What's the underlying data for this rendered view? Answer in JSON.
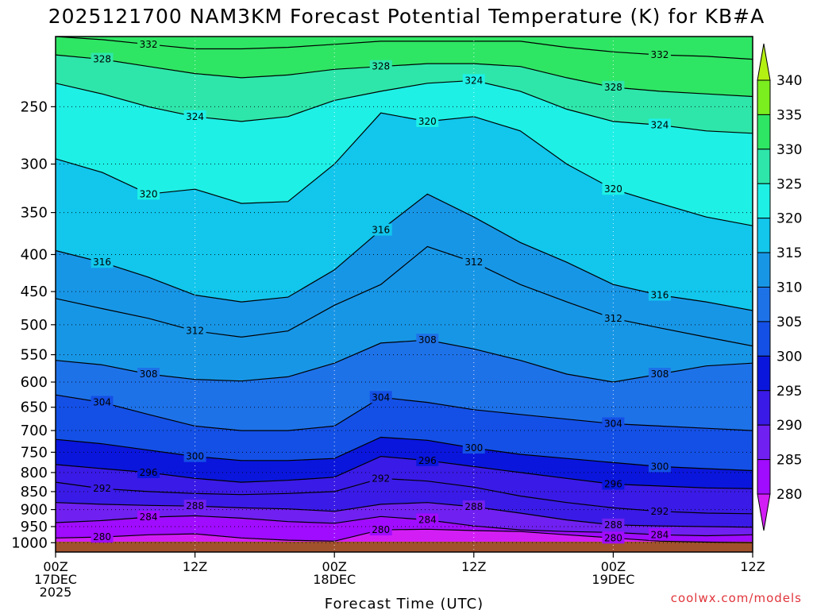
{
  "chart_data": {
    "type": "heatmap",
    "title": "2025121700 NAM3KM Forecast Potential Temperature (K) for KB#A",
    "xlabel": "Forecast Time (UTC)",
    "ylabel": "",
    "x_ticks": [
      {
        "hour": 0,
        "lines": [
          "00Z",
          "17DEC",
          "2025"
        ]
      },
      {
        "hour": 12,
        "lines": [
          "12Z"
        ]
      },
      {
        "hour": 24,
        "lines": [
          "00Z",
          "18DEC"
        ]
      },
      {
        "hour": 36,
        "lines": [
          "12Z"
        ]
      },
      {
        "hour": 48,
        "lines": [
          "00Z",
          "19DEC"
        ]
      },
      {
        "hour": 60,
        "lines": [
          "12Z"
        ]
      }
    ],
    "xlim": [
      0,
      60
    ],
    "y_ticks": [
      250,
      300,
      350,
      400,
      450,
      500,
      550,
      600,
      650,
      700,
      750,
      800,
      850,
      900,
      950,
      1000
    ],
    "ylim_hpa": [
      200,
      1030
    ],
    "y_units": "hPa",
    "colorbar": {
      "units": "K",
      "ticks": [
        340,
        335,
        330,
        325,
        320,
        315,
        310,
        305,
        300,
        295,
        290,
        285,
        280
      ],
      "levels": [
        {
          "from": 275,
          "to": 280,
          "color": "#d21ef5"
        },
        {
          "from": 280,
          "to": 285,
          "color": "#a00cff"
        },
        {
          "from": 285,
          "to": 290,
          "color": "#7020f0"
        },
        {
          "from": 290,
          "to": 295,
          "color": "#3a1ae6"
        },
        {
          "from": 295,
          "to": 300,
          "color": "#0a16dc"
        },
        {
          "from": 300,
          "to": 305,
          "color": "#1450e6"
        },
        {
          "from": 305,
          "to": 310,
          "color": "#1e72e8"
        },
        {
          "from": 310,
          "to": 315,
          "color": "#1896e6"
        },
        {
          "from": 315,
          "to": 320,
          "color": "#12c6ec"
        },
        {
          "from": 320,
          "to": 325,
          "color": "#1ef0e6"
        },
        {
          "from": 325,
          "to": 330,
          "color": "#2ee6aa"
        },
        {
          "from": 330,
          "to": 335,
          "color": "#2ee664"
        },
        {
          "from": 335,
          "to": 340,
          "color": "#7aee1e"
        },
        {
          "from": 340,
          "to": 345,
          "color": "#b4f012"
        }
      ]
    },
    "grid": true,
    "series": [
      {
        "name": "theta_280",
        "label": "280",
        "values": [
          [
            0,
            985
          ],
          [
            4,
            982
          ],
          [
            8,
            975
          ],
          [
            12,
            972
          ],
          [
            16,
            985
          ],
          [
            20,
            992
          ],
          [
            24,
            995
          ],
          [
            28,
            960
          ],
          [
            32,
            958
          ],
          [
            36,
            962
          ],
          [
            40,
            965
          ],
          [
            44,
            975
          ],
          [
            48,
            985
          ],
          [
            52,
            995
          ],
          [
            56,
            998
          ],
          [
            60,
            1000
          ]
        ]
      },
      {
        "name": "theta_284",
        "label": "284",
        "values": [
          [
            0,
            938
          ],
          [
            4,
            932
          ],
          [
            8,
            922
          ],
          [
            12,
            918
          ],
          [
            16,
            925
          ],
          [
            20,
            935
          ],
          [
            24,
            940
          ],
          [
            28,
            920
          ],
          [
            32,
            930
          ],
          [
            36,
            948
          ],
          [
            40,
            960
          ],
          [
            44,
            965
          ],
          [
            48,
            968
          ],
          [
            52,
            975
          ],
          [
            56,
            978
          ],
          [
            60,
            975
          ]
        ]
      },
      {
        "name": "theta_288",
        "label": "288",
        "values": [
          [
            0,
            880
          ],
          [
            4,
            885
          ],
          [
            8,
            888
          ],
          [
            12,
            890
          ],
          [
            16,
            895
          ],
          [
            20,
            898
          ],
          [
            24,
            905
          ],
          [
            28,
            885
          ],
          [
            32,
            880
          ],
          [
            36,
            892
          ],
          [
            40,
            910
          ],
          [
            44,
            930
          ],
          [
            48,
            945
          ],
          [
            52,
            948
          ],
          [
            56,
            950
          ],
          [
            60,
            952
          ]
        ]
      },
      {
        "name": "theta_292",
        "label": "292",
        "values": [
          [
            0,
            825
          ],
          [
            4,
            842
          ],
          [
            8,
            850
          ],
          [
            12,
            855
          ],
          [
            16,
            858
          ],
          [
            20,
            855
          ],
          [
            24,
            850
          ],
          [
            28,
            815
          ],
          [
            32,
            822
          ],
          [
            36,
            838
          ],
          [
            40,
            862
          ],
          [
            44,
            880
          ],
          [
            48,
            895
          ],
          [
            52,
            905
          ],
          [
            56,
            910
          ],
          [
            60,
            912
          ]
        ]
      },
      {
        "name": "theta_296",
        "label": "296",
        "values": [
          [
            0,
            780
          ],
          [
            4,
            790
          ],
          [
            8,
            800
          ],
          [
            12,
            815
          ],
          [
            16,
            825
          ],
          [
            20,
            820
          ],
          [
            24,
            812
          ],
          [
            28,
            760
          ],
          [
            32,
            770
          ],
          [
            36,
            785
          ],
          [
            40,
            800
          ],
          [
            44,
            815
          ],
          [
            48,
            830
          ],
          [
            52,
            835
          ],
          [
            56,
            840
          ],
          [
            60,
            842
          ]
        ]
      },
      {
        "name": "theta_300",
        "label": "300",
        "values": [
          [
            0,
            720
          ],
          [
            4,
            730
          ],
          [
            8,
            745
          ],
          [
            12,
            760
          ],
          [
            16,
            770
          ],
          [
            20,
            770
          ],
          [
            24,
            765
          ],
          [
            28,
            715
          ],
          [
            32,
            722
          ],
          [
            36,
            740
          ],
          [
            40,
            755
          ],
          [
            44,
            765
          ],
          [
            48,
            775
          ],
          [
            52,
            785
          ],
          [
            56,
            790
          ],
          [
            60,
            795
          ]
        ]
      },
      {
        "name": "theta_304",
        "label": "304",
        "values": [
          [
            0,
            625
          ],
          [
            4,
            640
          ],
          [
            8,
            665
          ],
          [
            12,
            690
          ],
          [
            16,
            700
          ],
          [
            20,
            700
          ],
          [
            24,
            690
          ],
          [
            28,
            630
          ],
          [
            32,
            640
          ],
          [
            36,
            655
          ],
          [
            40,
            665
          ],
          [
            44,
            675
          ],
          [
            48,
            685
          ],
          [
            52,
            690
          ],
          [
            56,
            695
          ],
          [
            60,
            700
          ]
        ]
      },
      {
        "name": "theta_308",
        "label": "308",
        "values": [
          [
            0,
            560
          ],
          [
            4,
            568
          ],
          [
            8,
            585
          ],
          [
            12,
            595
          ],
          [
            16,
            598
          ],
          [
            20,
            590
          ],
          [
            24,
            565
          ],
          [
            28,
            530
          ],
          [
            32,
            525
          ],
          [
            36,
            540
          ],
          [
            40,
            560
          ],
          [
            44,
            585
          ],
          [
            48,
            600
          ],
          [
            52,
            585
          ],
          [
            56,
            570
          ],
          [
            60,
            565
          ]
        ]
      },
      {
        "name": "theta_312",
        "label": "312",
        "values": [
          [
            0,
            460
          ],
          [
            4,
            475
          ],
          [
            8,
            490
          ],
          [
            12,
            510
          ],
          [
            16,
            520
          ],
          [
            20,
            510
          ],
          [
            24,
            470
          ],
          [
            28,
            440
          ],
          [
            32,
            390
          ],
          [
            36,
            410
          ],
          [
            40,
            440
          ],
          [
            44,
            465
          ],
          [
            48,
            490
          ],
          [
            52,
            505
          ],
          [
            56,
            520
          ],
          [
            60,
            535
          ]
        ]
      },
      {
        "name": "theta_316",
        "label": "316",
        "values": [
          [
            0,
            395
          ],
          [
            4,
            410
          ],
          [
            8,
            430
          ],
          [
            12,
            455
          ],
          [
            16,
            465
          ],
          [
            20,
            458
          ],
          [
            24,
            420
          ],
          [
            28,
            370
          ],
          [
            32,
            330
          ],
          [
            36,
            355
          ],
          [
            40,
            385
          ],
          [
            44,
            410
          ],
          [
            48,
            440
          ],
          [
            52,
            455
          ],
          [
            56,
            465
          ],
          [
            60,
            478
          ]
        ]
      },
      {
        "name": "theta_320",
        "label": "320",
        "values": [
          [
            0,
            295
          ],
          [
            4,
            308
          ],
          [
            8,
            330
          ],
          [
            12,
            325
          ],
          [
            16,
            340
          ],
          [
            20,
            338
          ],
          [
            24,
            300
          ],
          [
            28,
            255
          ],
          [
            32,
            262
          ],
          [
            36,
            258
          ],
          [
            40,
            270
          ],
          [
            44,
            300
          ],
          [
            48,
            325
          ],
          [
            52,
            340
          ],
          [
            56,
            355
          ],
          [
            60,
            365
          ]
        ]
      },
      {
        "name": "theta_324",
        "label": "324",
        "values": [
          [
            0,
            232
          ],
          [
            4,
            240
          ],
          [
            8,
            250
          ],
          [
            12,
            258
          ],
          [
            16,
            262
          ],
          [
            20,
            258
          ],
          [
            24,
            245
          ],
          [
            28,
            238
          ],
          [
            32,
            232
          ],
          [
            36,
            230
          ],
          [
            40,
            238
          ],
          [
            44,
            252
          ],
          [
            48,
            262
          ],
          [
            52,
            265
          ],
          [
            56,
            270
          ],
          [
            60,
            272
          ]
        ]
      },
      {
        "name": "theta_328",
        "label": "328",
        "values": [
          [
            0,
            212
          ],
          [
            4,
            215
          ],
          [
            8,
            220
          ],
          [
            12,
            225
          ],
          [
            16,
            228
          ],
          [
            20,
            226
          ],
          [
            24,
            222
          ],
          [
            28,
            220
          ],
          [
            32,
            218
          ],
          [
            36,
            218
          ],
          [
            40,
            220
          ],
          [
            44,
            228
          ],
          [
            48,
            235
          ],
          [
            52,
            238
          ],
          [
            56,
            240
          ],
          [
            60,
            242
          ]
        ]
      },
      {
        "name": "theta_332",
        "label": "332",
        "values": [
          [
            0,
            200
          ],
          [
            4,
            202
          ],
          [
            8,
            205
          ],
          [
            12,
            208
          ],
          [
            16,
            208
          ],
          [
            20,
            207
          ],
          [
            24,
            205
          ],
          [
            28,
            203
          ],
          [
            32,
            203
          ],
          [
            36,
            203
          ],
          [
            40,
            203
          ],
          [
            44,
            207
          ],
          [
            48,
            210
          ],
          [
            52,
            212
          ],
          [
            56,
            213
          ],
          [
            60,
            215
          ]
        ]
      }
    ],
    "annotations": [
      "328",
      "332",
      "324",
      "320",
      "316",
      "312",
      "308",
      "304",
      "300",
      "296",
      "292",
      "288",
      "284",
      "280"
    ]
  },
  "credit": "coolwx.com/models"
}
